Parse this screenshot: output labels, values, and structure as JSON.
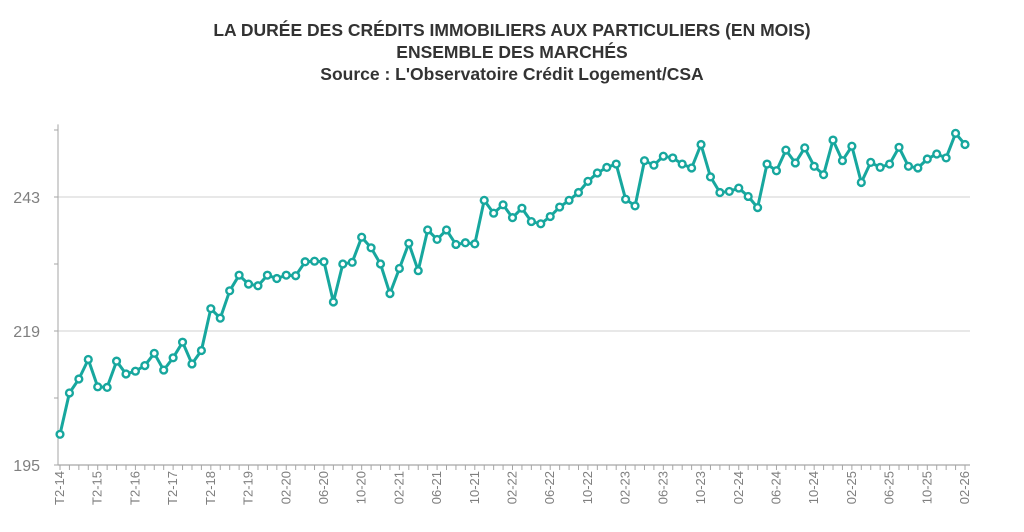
{
  "chart_data": {
    "type": "line",
    "title": "LA DURÉE DES CRÉDITS IMMOBILIERS AUX PARTICULIERS (EN MOIS)",
    "subtitle": "ENSEMBLE DES MARCHÉS",
    "source": "Source : L'Observatoire Crédit Logement/CSA",
    "xlabel": "",
    "ylabel": "",
    "ylim": [
      195,
      256
    ],
    "yticks": [
      195,
      219,
      243
    ],
    "grid": true,
    "color": "#17a79e",
    "x": [
      "T2-14",
      "T3-14",
      "T4-14",
      "T1-15",
      "T2-15",
      "T3-15",
      "T4-15",
      "T1-16",
      "T2-16",
      "T3-16",
      "T4-16",
      "T1-17",
      "T2-17",
      "T3-17",
      "T4-17",
      "T1-18",
      "T2-18",
      "T3-18",
      "T4-18",
      "T1-19",
      "T2-19",
      "T3-19",
      "T4-19",
      "01-20",
      "02-20",
      "03-20",
      "04-20",
      "05-20",
      "06-20",
      "07-20",
      "08-20",
      "09-20",
      "10-20",
      "11-20",
      "12-20",
      "01-21",
      "02-21",
      "03-21",
      "04-21",
      "05-21",
      "06-21",
      "07-21",
      "08-21",
      "09-21",
      "10-21",
      "11-21",
      "12-21",
      "01-22",
      "02-22",
      "03-22",
      "04-22",
      "05-22",
      "06-22",
      "07-22",
      "08-22",
      "09-22",
      "10-22",
      "11-22",
      "12-22",
      "01-23",
      "02-23",
      "03-23",
      "04-23",
      "05-23",
      "06-23",
      "07-23",
      "08-23",
      "09-23",
      "10-23",
      "11-23",
      "12-23",
      "01-24",
      "02-24",
      "03-24",
      "04-24",
      "05-24",
      "06-24",
      "07-24",
      "08-24",
      "09-24",
      "10-24",
      "11-24",
      "12-24",
      "01-25",
      "02-25",
      "03-25",
      "04-25",
      "05-25",
      "06-25",
      "07-25",
      "08-25",
      "09-25",
      "10-25",
      "11-25",
      "12-25",
      "01-26",
      "02-26"
    ],
    "xtick_labels": [
      "T2-14",
      "T2-15",
      "T2-16",
      "T2-17",
      "T2-18",
      "T2-19",
      "02-20",
      "06-20",
      "10-20",
      "02-21",
      "06-21",
      "10-21",
      "02-22",
      "06-22",
      "10-22",
      "02-23",
      "06-23",
      "10-23",
      "02-24",
      "06-24",
      "10-24",
      "02-25",
      "06-25",
      "10-25",
      "02-26"
    ],
    "values": [
      200.5,
      207.9,
      210.4,
      213.9,
      209.0,
      208.9,
      213.6,
      211.3,
      211.8,
      212.8,
      215.0,
      212.0,
      214.2,
      217.0,
      213.1,
      215.5,
      223.0,
      221.3,
      226.2,
      229.0,
      227.4,
      227.1,
      229.0,
      228.4,
      229.0,
      228.9,
      231.4,
      231.5,
      231.4,
      224.2,
      231.0,
      231.3,
      235.8,
      233.9,
      231.0,
      225.7,
      230.2,
      234.7,
      229.8,
      237.1,
      235.4,
      237.1,
      234.5,
      234.8,
      234.6,
      242.4,
      240.1,
      241.6,
      239.3,
      241.0,
      238.6,
      238.2,
      239.5,
      241.2,
      242.4,
      243.8,
      245.8,
      247.3,
      248.3,
      248.9,
      242.6,
      241.4,
      249.5,
      248.7,
      250.3,
      250.0,
      248.9,
      248.2,
      252.4,
      246.6,
      243.8,
      244.0,
      244.6,
      243.1,
      241.1,
      248.9,
      247.7,
      251.4,
      249.1,
      251.8,
      248.5,
      247.0,
      253.2,
      249.5,
      252.1,
      245.6,
      249.2,
      248.3,
      248.9,
      251.9,
      248.5,
      248.2,
      249.8,
      250.7,
      250.0,
      254.4,
      252.4
    ]
  }
}
